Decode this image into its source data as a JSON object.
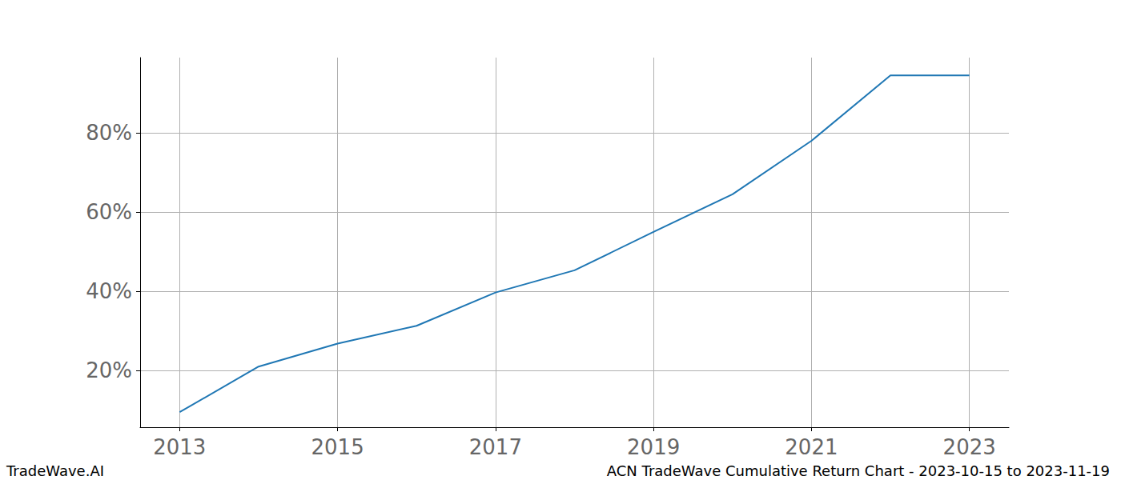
{
  "chart_data": {
    "type": "line",
    "title": "ACN TradeWave Cumulative Return Chart - 2023-10-15 to 2023-11-19",
    "annotations": [
      "TradeWave.AI"
    ],
    "x": [
      2013,
      2014,
      2015,
      2016,
      2017,
      2018,
      2019,
      2020,
      2021,
      2022,
      2023
    ],
    "values": [
      9.5,
      21,
      26.8,
      31.3,
      39.7,
      45.3,
      55,
      64.5,
      78,
      94.5,
      94.5
    ],
    "color": "#1f77b4",
    "xlim": [
      2012.5,
      2023.5
    ],
    "xticks": [
      2013,
      2015,
      2017,
      2019,
      2021,
      2023
    ],
    "ylim": [
      5.7,
      99
    ],
    "yticks": [
      {
        "value": 20,
        "label": "20%"
      },
      {
        "value": 40,
        "label": "40%"
      },
      {
        "value": 60,
        "label": "60%"
      },
      {
        "value": 80,
        "label": "80%"
      }
    ],
    "grid": true
  }
}
